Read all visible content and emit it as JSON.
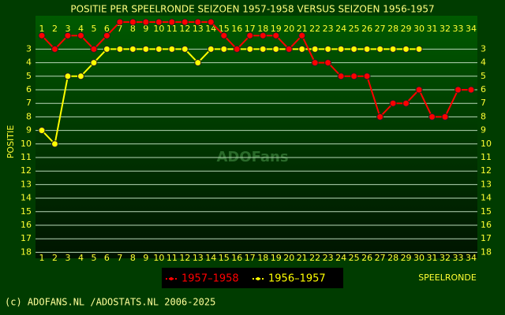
{
  "chart_data": {
    "type": "line",
    "title": "POSITIE PER SPEELRONDE SEIZOEN 1957-1958 VERSUS SEIZOEN 1956-1957",
    "y_label": "POSITIE",
    "x_label": "SPEELRONDE",
    "watermark": "ADOFans",
    "footer": "(c) ADOFANS.NL /ADOSTATS.NL 2006-2025",
    "categories": [
      "1",
      "2",
      "3",
      "4",
      "5",
      "6",
      "7",
      "8",
      "9",
      "10",
      "11",
      "12",
      "13",
      "14",
      "15",
      "16",
      "17",
      "18",
      "19",
      "20",
      "21",
      "22",
      "23",
      "24",
      "25",
      "26",
      "27",
      "28",
      "29",
      "30",
      "31",
      "32",
      "33",
      "34"
    ],
    "series": [
      {
        "name": "1957–1958",
        "color": "#ff0000",
        "values": [
          2,
          3,
          2,
          2,
          3,
          2,
          1,
          1,
          1,
          1,
          1,
          1,
          1,
          1,
          2,
          3,
          2,
          2,
          2,
          3,
          2,
          4,
          4,
          5,
          5,
          5,
          8,
          7,
          7,
          6,
          8,
          8,
          6,
          6
        ]
      },
      {
        "name": "1956–1957",
        "color": "#ffff00",
        "values": [
          9,
          10,
          5,
          5,
          4,
          3,
          3,
          3,
          3,
          3,
          3,
          3,
          4,
          3,
          3,
          3,
          3,
          3,
          3,
          3,
          3,
          3,
          3,
          3,
          3,
          3,
          3,
          3,
          3,
          3,
          null,
          null,
          null,
          null
        ]
      }
    ],
    "ylim": [
      1,
      18
    ],
    "inverted_y": true,
    "yticks": [
      3,
      4,
      5,
      6,
      7,
      8,
      9,
      10,
      11,
      12,
      13,
      14,
      15,
      16,
      17,
      18
    ],
    "grid": true
  }
}
